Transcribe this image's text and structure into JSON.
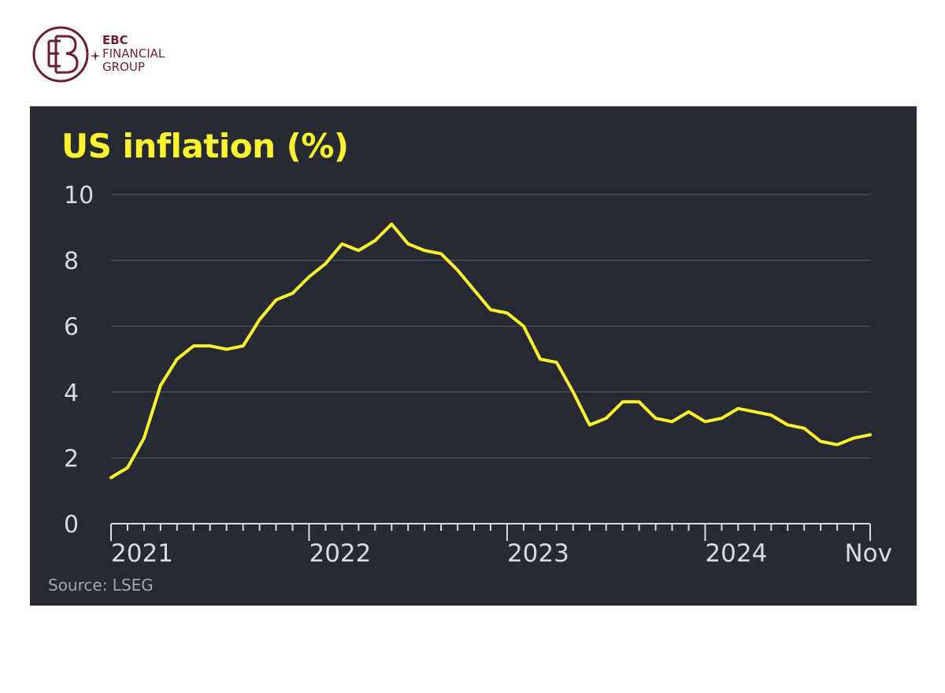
{
  "brand": {
    "line1": "EBC",
    "line2": "FINANCIAL",
    "line3": "GROUP",
    "logo_text": "EB",
    "color": "#6a1f32"
  },
  "chart_data": {
    "type": "line",
    "title": "US inflation (%)",
    "source": "Source: LSEG",
    "ylim": [
      0,
      10
    ],
    "yticks": [
      0,
      2,
      4,
      6,
      8,
      10
    ],
    "grid": true,
    "x_start": "2021-01",
    "x_end": "2024-11",
    "xtick_labels": [
      {
        "label": "2021",
        "x": "2021-01"
      },
      {
        "label": "2022",
        "x": "2022-01"
      },
      {
        "label": "2023",
        "x": "2023-01"
      },
      {
        "label": "2024",
        "x": "2024-01"
      },
      {
        "label": "Nov",
        "x": "2024-11"
      }
    ],
    "series": [
      {
        "color": "#fff22f",
        "points": [
          [
            "2021-01",
            1.4
          ],
          [
            "2021-02",
            1.7
          ],
          [
            "2021-03",
            2.6
          ],
          [
            "2021-04",
            4.2
          ],
          [
            "2021-05",
            5.0
          ],
          [
            "2021-06",
            5.4
          ],
          [
            "2021-07",
            5.4
          ],
          [
            "2021-08",
            5.3
          ],
          [
            "2021-09",
            5.4
          ],
          [
            "2021-10",
            6.2
          ],
          [
            "2021-11",
            6.8
          ],
          [
            "2021-12",
            7.0
          ],
          [
            "2022-01",
            7.5
          ],
          [
            "2022-02",
            7.9
          ],
          [
            "2022-03",
            8.5
          ],
          [
            "2022-04",
            8.3
          ],
          [
            "2022-05",
            8.6
          ],
          [
            "2022-06",
            9.1
          ],
          [
            "2022-07",
            8.5
          ],
          [
            "2022-08",
            8.3
          ],
          [
            "2022-09",
            8.2
          ],
          [
            "2022-10",
            7.7
          ],
          [
            "2022-11",
            7.1
          ],
          [
            "2022-12",
            6.5
          ],
          [
            "2023-01",
            6.4
          ],
          [
            "2023-02",
            6.0
          ],
          [
            "2023-03",
            5.0
          ],
          [
            "2023-04",
            4.9
          ],
          [
            "2023-05",
            4.0
          ],
          [
            "2023-06",
            3.0
          ],
          [
            "2023-07",
            3.2
          ],
          [
            "2023-08",
            3.7
          ],
          [
            "2023-09",
            3.7
          ],
          [
            "2023-10",
            3.2
          ],
          [
            "2023-11",
            3.1
          ],
          [
            "2023-12",
            3.4
          ],
          [
            "2024-01",
            3.1
          ],
          [
            "2024-02",
            3.2
          ],
          [
            "2024-03",
            3.5
          ],
          [
            "2024-04",
            3.4
          ],
          [
            "2024-05",
            3.3
          ],
          [
            "2024-06",
            3.0
          ],
          [
            "2024-07",
            2.9
          ],
          [
            "2024-08",
            2.5
          ],
          [
            "2024-09",
            2.4
          ],
          [
            "2024-10",
            2.6
          ],
          [
            "2024-11",
            2.7
          ]
        ]
      }
    ]
  }
}
